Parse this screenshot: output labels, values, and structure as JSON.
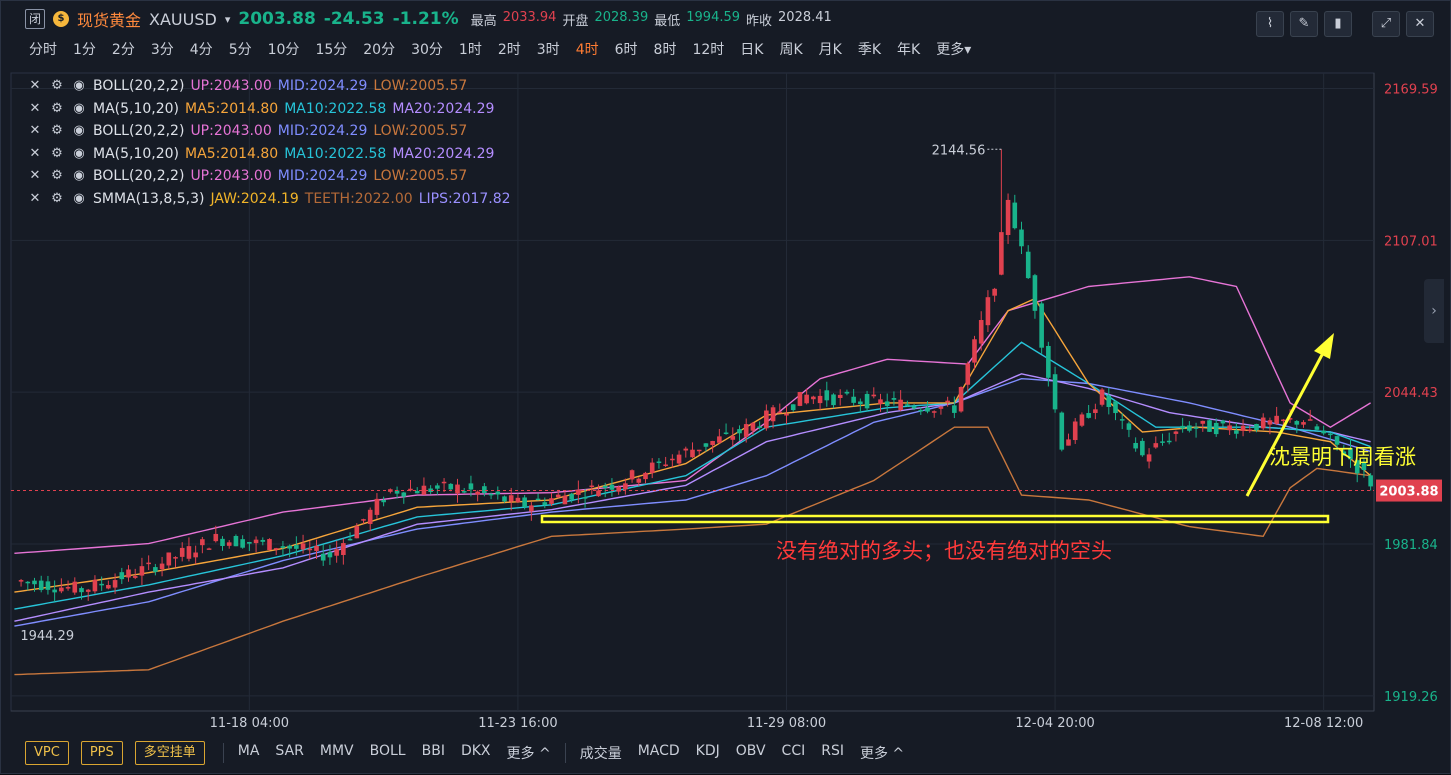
{
  "header": {
    "close_glyph": "闭",
    "gold_glyph": "$",
    "name": "现货黄金",
    "symbol": "XAUUSD",
    "caret": "▾",
    "last": "2003.88",
    "change": "-24.53",
    "change_pct": "-1.21%",
    "stats": [
      {
        "label": "最高",
        "value": "2033.94",
        "tone": "red"
      },
      {
        "label": "开盘",
        "value": "2028.39",
        "tone": "green"
      },
      {
        "label": "最低",
        "value": "1994.59",
        "tone": "green"
      },
      {
        "label": "昨收",
        "value": "2028.41",
        "tone": "neutral"
      }
    ]
  },
  "toolbar_icons": [
    "line-chart-icon",
    "draw-pen-icon",
    "candle-type-icon",
    "fullscreen-icon",
    "close-icon"
  ],
  "periods": {
    "items": [
      "分时",
      "1分",
      "2分",
      "3分",
      "4分",
      "5分",
      "10分",
      "15分",
      "20分",
      "30分",
      "1时",
      "2时",
      "3时",
      "4时",
      "6时",
      "8时",
      "12时",
      "日K",
      "周K",
      "月K",
      "季K",
      "年K",
      "更多▾"
    ],
    "active_index": 13
  },
  "legend": [
    {
      "name": "BOLL(20,2,2)",
      "vals": [
        {
          "t": "UP:2043.00",
          "c": "c-pink"
        },
        {
          "t": "MID:2024.29",
          "c": "c-blue"
        },
        {
          "t": "LOW:2005.57",
          "c": "c-brown"
        }
      ]
    },
    {
      "name": "MA(5,10,20)",
      "vals": [
        {
          "t": "MA5:2014.80",
          "c": "c-orange"
        },
        {
          "t": "MA10:2022.58",
          "c": "c-cyan"
        },
        {
          "t": "MA20:2024.29",
          "c": "c-violet"
        }
      ]
    },
    {
      "name": "BOLL(20,2,2)",
      "vals": [
        {
          "t": "UP:2043.00",
          "c": "c-pink"
        },
        {
          "t": "MID:2024.29",
          "c": "c-blue"
        },
        {
          "t": "LOW:2005.57",
          "c": "c-brown"
        }
      ]
    },
    {
      "name": "MA(5,10,20)",
      "vals": [
        {
          "t": "MA5:2014.80",
          "c": "c-orange"
        },
        {
          "t": "MA10:2022.58",
          "c": "c-cyan"
        },
        {
          "t": "MA20:2024.29",
          "c": "c-violet"
        }
      ]
    },
    {
      "name": "BOLL(20,2,2)",
      "vals": [
        {
          "t": "UP:2043.00",
          "c": "c-pink"
        },
        {
          "t": "MID:2024.29",
          "c": "c-blue"
        },
        {
          "t": "LOW:2005.57",
          "c": "c-brown"
        }
      ]
    },
    {
      "name": "SMMA(13,8,5,3)",
      "vals": [
        {
          "t": "JAW:2024.19",
          "c": "c-yellow"
        },
        {
          "t": "TEETH:2022.00",
          "c": "c-tan"
        },
        {
          "t": "LIPS:2017.82",
          "c": "c-lilac"
        }
      ]
    }
  ],
  "legend_icons": [
    "close-icon",
    "settings-icon",
    "visibility-icon"
  ],
  "chart_data": {
    "type": "candlestick",
    "title": "",
    "xlabel": "",
    "ylabel": "",
    "ylim": [
      1913,
      2176
    ],
    "y_ticks": [
      {
        "v": 2169.59,
        "label": "2169.59",
        "tone": "red"
      },
      {
        "v": 2107.01,
        "label": "2107.01",
        "tone": "red"
      },
      {
        "v": 2044.43,
        "label": "2044.43",
        "tone": "red"
      },
      {
        "v": 1981.84,
        "label": "1981.84",
        "tone": "green"
      },
      {
        "v": 1919.26,
        "label": "1919.26",
        "tone": "green"
      }
    ],
    "x_ticks": [
      {
        "i": 35,
        "label": "11-18 04:00"
      },
      {
        "i": 75,
        "label": "11-23 16:00"
      },
      {
        "i": 115,
        "label": "11-29 08:00"
      },
      {
        "i": 155,
        "label": "12-04 20:00"
      },
      {
        "i": 195,
        "label": "12-08 12:00"
      }
    ],
    "n_bars": 203,
    "last_price": {
      "v": 2003.88,
      "label": "2003.88"
    },
    "max_label": {
      "i": 147,
      "v": 2144.56,
      "label": "2144.56"
    },
    "min_label": {
      "i": 0,
      "v": 1944.29,
      "label": "1944.29"
    },
    "up_color": "#e0414f",
    "down_color": "#19b38b",
    "price_anchors": [
      [
        0,
        1967
      ],
      [
        10,
        1963
      ],
      [
        20,
        1972
      ],
      [
        30,
        1984
      ],
      [
        40,
        1981
      ],
      [
        47,
        1977
      ],
      [
        56,
        2004
      ],
      [
        66,
        2005
      ],
      [
        76,
        1998
      ],
      [
        90,
        2007
      ],
      [
        100,
        2020
      ],
      [
        108,
        2028
      ],
      [
        118,
        2043
      ],
      [
        130,
        2040
      ],
      [
        140,
        2038
      ],
      [
        146,
        2090
      ],
      [
        148,
        2125
      ],
      [
        152,
        2080
      ],
      [
        156,
        2023
      ],
      [
        162,
        2043
      ],
      [
        168,
        2018
      ],
      [
        174,
        2030
      ],
      [
        182,
        2030
      ],
      [
        192,
        2033
      ],
      [
        198,
        2020
      ],
      [
        203,
        2004
      ]
    ],
    "boll_up_anchors": [
      [
        0,
        1978
      ],
      [
        20,
        1982
      ],
      [
        40,
        1995
      ],
      [
        60,
        2002
      ],
      [
        80,
        2003
      ],
      [
        100,
        2008
      ],
      [
        112,
        2032
      ],
      [
        120,
        2050
      ],
      [
        130,
        2058
      ],
      [
        142,
        2056
      ],
      [
        148,
        2078
      ],
      [
        160,
        2088
      ],
      [
        175,
        2092
      ],
      [
        182,
        2088
      ],
      [
        190,
        2040
      ],
      [
        196,
        2030
      ],
      [
        202,
        2040
      ]
    ],
    "boll_mid_anchors": [
      [
        0,
        1948
      ],
      [
        20,
        1958
      ],
      [
        40,
        1975
      ],
      [
        60,
        1988
      ],
      [
        80,
        1995
      ],
      [
        100,
        2000
      ],
      [
        112,
        2010
      ],
      [
        128,
        2032
      ],
      [
        140,
        2040
      ],
      [
        150,
        2050
      ],
      [
        160,
        2048
      ],
      [
        175,
        2040
      ],
      [
        190,
        2030
      ],
      [
        202,
        2020
      ]
    ],
    "boll_low_anchors": [
      [
        0,
        1928
      ],
      [
        20,
        1930
      ],
      [
        40,
        1950
      ],
      [
        60,
        1968
      ],
      [
        80,
        1985
      ],
      [
        100,
        1988
      ],
      [
        112,
        1990
      ],
      [
        128,
        2008
      ],
      [
        140,
        2030
      ],
      [
        145,
        2030
      ],
      [
        150,
        2002
      ],
      [
        160,
        2000
      ],
      [
        175,
        1989
      ],
      [
        186,
        1985
      ],
      [
        190,
        2005
      ],
      [
        194,
        2013
      ],
      [
        202,
        2010
      ]
    ],
    "ma5_anchors": [
      [
        0,
        1962
      ],
      [
        20,
        1970
      ],
      [
        40,
        1980
      ],
      [
        60,
        1997
      ],
      [
        80,
        2000
      ],
      [
        100,
        2015
      ],
      [
        112,
        2035
      ],
      [
        130,
        2040
      ],
      [
        140,
        2040
      ],
      [
        148,
        2078
      ],
      [
        152,
        2083
      ],
      [
        160,
        2048
      ],
      [
        168,
        2028
      ],
      [
        176,
        2030
      ],
      [
        188,
        2028
      ],
      [
        196,
        2024
      ],
      [
        202,
        2010
      ]
    ],
    "ma10_anchors": [
      [
        0,
        1955
      ],
      [
        20,
        1965
      ],
      [
        40,
        1977
      ],
      [
        60,
        1993
      ],
      [
        80,
        1998
      ],
      [
        100,
        2010
      ],
      [
        112,
        2030
      ],
      [
        130,
        2038
      ],
      [
        140,
        2040
      ],
      [
        150,
        2065
      ],
      [
        160,
        2048
      ],
      [
        170,
        2030
      ],
      [
        186,
        2030
      ],
      [
        196,
        2028
      ],
      [
        202,
        2022
      ]
    ],
    "ma20_anchors": [
      [
        0,
        1950
      ],
      [
        20,
        1962
      ],
      [
        40,
        1972
      ],
      [
        60,
        1990
      ],
      [
        80,
        1996
      ],
      [
        100,
        2006
      ],
      [
        112,
        2024
      ],
      [
        130,
        2036
      ],
      [
        140,
        2040
      ],
      [
        150,
        2052
      ],
      [
        160,
        2046
      ],
      [
        172,
        2036
      ],
      [
        186,
        2030
      ],
      [
        196,
        2028
      ],
      [
        202,
        2024
      ]
    ],
    "annotations": {
      "text1": "没有绝对的多头；也没有绝对的空头",
      "text2": "沈景明下周看涨"
    }
  },
  "bottom": {
    "buttons": [
      "VPC",
      "PPS",
      "多空挂单"
    ],
    "main_indicators": [
      "MA",
      "SAR",
      "MMV",
      "BOLL",
      "BBI",
      "DKX",
      "更多 ^"
    ],
    "sub_indicators": [
      "成交量",
      "MACD",
      "KDJ",
      "OBV",
      "CCI",
      "RSI",
      "更多 ^"
    ]
  },
  "side_tab_glyph": "›"
}
